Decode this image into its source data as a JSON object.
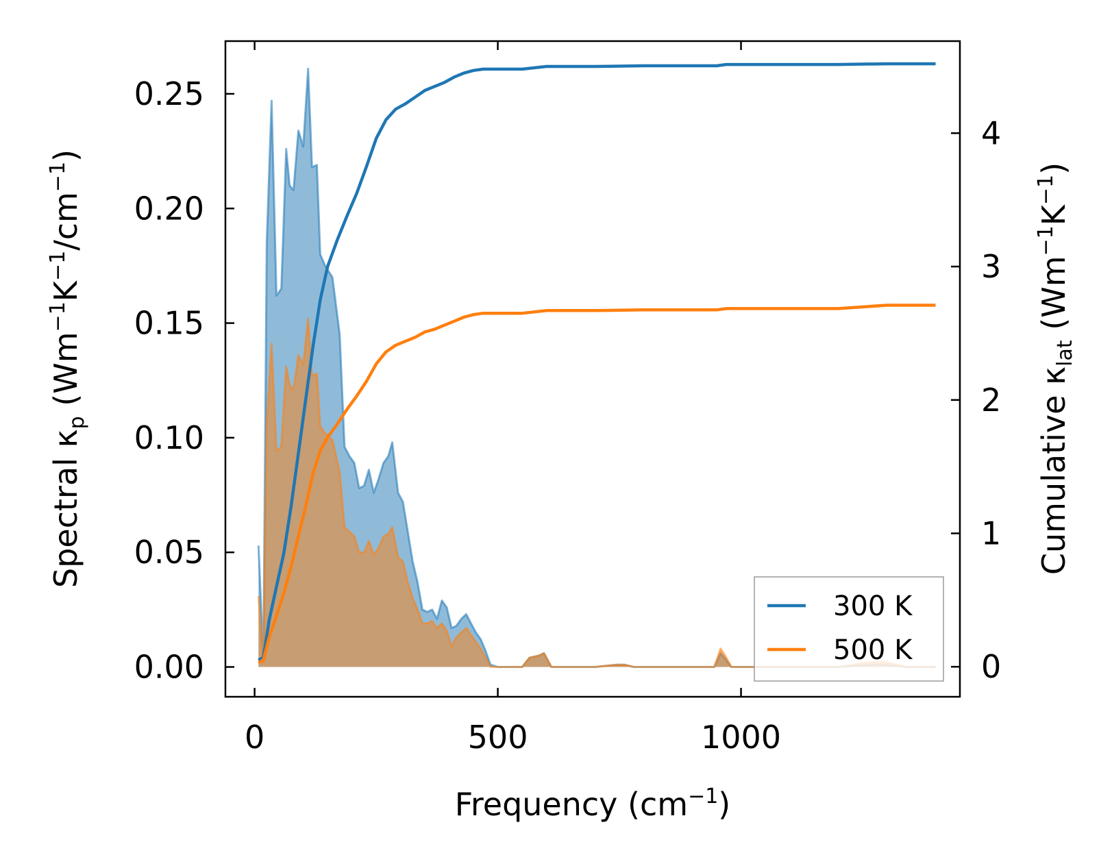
{
  "chart_data": {
    "type": "area+line",
    "xlabel": "Frequency (cm",
    "xlabel_sup": "−1",
    "xlabel_end": ")",
    "ylabel_left": {
      "prefix": "Spectral κ",
      "sub": "p",
      "mid": " (Wm",
      "sup1": "−1",
      "k": "K",
      "sup2": "−1",
      "slash": "/cm",
      "sup3": "−1",
      "end": ")"
    },
    "ylabel_right": {
      "prefix": "Cumulative κ",
      "sub": "lat",
      "mid": " (Wm",
      "sup1": "−1",
      "k": "K",
      "sup2": "−1",
      "end": ")"
    },
    "xlim": [
      -60,
      1450
    ],
    "ylim_left": [
      -0.013,
      0.273
    ],
    "ylim_right": [
      -0.225,
      4.69
    ],
    "x_ticks": [
      0,
      500,
      1000
    ],
    "x_tick_labels": [
      "0",
      "500",
      "1000"
    ],
    "y_left_ticks": [
      0.0,
      0.05,
      0.1,
      0.15,
      0.2,
      0.25
    ],
    "y_left_tick_labels": [
      "0.00",
      "0.05",
      "0.10",
      "0.15",
      "0.20",
      "0.25"
    ],
    "y_right_ticks": [
      0,
      1,
      2,
      3,
      4
    ],
    "y_right_tick_labels": [
      "0",
      "1",
      "2",
      "3",
      "4"
    ],
    "legend": {
      "position": "lower-right",
      "entries": [
        "300 K",
        "500 K"
      ]
    },
    "series": [
      {
        "name": "300 K",
        "color": "#1f77b4",
        "spectral": [
          [
            8,
            0.053
          ],
          [
            18,
            0.003
          ],
          [
            25,
            0.185
          ],
          [
            35,
            0.247
          ],
          [
            45,
            0.162
          ],
          [
            55,
            0.165
          ],
          [
            65,
            0.226
          ],
          [
            72,
            0.21
          ],
          [
            80,
            0.208
          ],
          [
            90,
            0.234
          ],
          [
            100,
            0.227
          ],
          [
            110,
            0.261
          ],
          [
            118,
            0.218
          ],
          [
            128,
            0.219
          ],
          [
            135,
            0.18
          ],
          [
            145,
            0.175
          ],
          [
            160,
            0.17
          ],
          [
            175,
            0.145
          ],
          [
            185,
            0.096
          ],
          [
            195,
            0.092
          ],
          [
            205,
            0.089
          ],
          [
            215,
            0.078
          ],
          [
            225,
            0.079
          ],
          [
            235,
            0.086
          ],
          [
            245,
            0.076
          ],
          [
            255,
            0.082
          ],
          [
            265,
            0.089
          ],
          [
            275,
            0.092
          ],
          [
            283,
            0.098
          ],
          [
            295,
            0.076
          ],
          [
            305,
            0.072
          ],
          [
            315,
            0.059
          ],
          [
            325,
            0.046
          ],
          [
            335,
            0.037
          ],
          [
            345,
            0.025
          ],
          [
            355,
            0.024
          ],
          [
            365,
            0.025
          ],
          [
            375,
            0.021
          ],
          [
            385,
            0.029
          ],
          [
            395,
            0.026
          ],
          [
            405,
            0.017
          ],
          [
            415,
            0.018
          ],
          [
            425,
            0.021
          ],
          [
            435,
            0.023
          ],
          [
            445,
            0.019
          ],
          [
            455,
            0.015
          ],
          [
            465,
            0.012
          ],
          [
            475,
            0.007
          ],
          [
            485,
            0.001
          ],
          [
            500,
            0.0
          ],
          [
            550,
            0.0
          ],
          [
            565,
            0.004
          ],
          [
            585,
            0.005
          ],
          [
            595,
            0.006
          ],
          [
            610,
            0.0
          ],
          [
            700,
            0.0
          ],
          [
            745,
            0.001
          ],
          [
            760,
            0.001
          ],
          [
            780,
            0.0
          ],
          [
            900,
            0.0
          ],
          [
            945,
            0.0
          ],
          [
            958,
            0.006
          ],
          [
            970,
            0.003
          ],
          [
            980,
            0.0
          ],
          [
            1200,
            0.0
          ],
          [
            1260,
            0.001
          ],
          [
            1300,
            0.001
          ],
          [
            1340,
            0.0
          ],
          [
            1400,
            0.0
          ]
        ],
        "cumulative": [
          [
            8,
            0.05
          ],
          [
            18,
            0.07
          ],
          [
            30,
            0.35
          ],
          [
            45,
            0.6
          ],
          [
            60,
            0.85
          ],
          [
            75,
            1.2
          ],
          [
            90,
            1.6
          ],
          [
            105,
            2.0
          ],
          [
            120,
            2.4
          ],
          [
            135,
            2.75
          ],
          [
            150,
            3.0
          ],
          [
            170,
            3.2
          ],
          [
            190,
            3.38
          ],
          [
            210,
            3.55
          ],
          [
            230,
            3.75
          ],
          [
            250,
            3.96
          ],
          [
            270,
            4.1
          ],
          [
            290,
            4.18
          ],
          [
            310,
            4.22
          ],
          [
            330,
            4.27
          ],
          [
            350,
            4.32
          ],
          [
            370,
            4.35
          ],
          [
            390,
            4.38
          ],
          [
            410,
            4.42
          ],
          [
            430,
            4.45
          ],
          [
            450,
            4.47
          ],
          [
            470,
            4.48
          ],
          [
            500,
            4.48
          ],
          [
            550,
            4.48
          ],
          [
            600,
            4.5
          ],
          [
            700,
            4.5
          ],
          [
            800,
            4.505
          ],
          [
            900,
            4.505
          ],
          [
            950,
            4.505
          ],
          [
            970,
            4.515
          ],
          [
            1100,
            4.515
          ],
          [
            1200,
            4.515
          ],
          [
            1300,
            4.52
          ],
          [
            1400,
            4.52
          ]
        ]
      },
      {
        "name": "500 K",
        "color": "#ff7f0e",
        "spectral": [
          [
            8,
            0.031
          ],
          [
            18,
            0.002
          ],
          [
            25,
            0.107
          ],
          [
            35,
            0.141
          ],
          [
            45,
            0.094
          ],
          [
            55,
            0.096
          ],
          [
            65,
            0.131
          ],
          [
            72,
            0.123
          ],
          [
            80,
            0.121
          ],
          [
            90,
            0.136
          ],
          [
            100,
            0.132
          ],
          [
            110,
            0.152
          ],
          [
            118,
            0.127
          ],
          [
            128,
            0.128
          ],
          [
            135,
            0.105
          ],
          [
            145,
            0.102
          ],
          [
            160,
            0.099
          ],
          [
            175,
            0.085
          ],
          [
            185,
            0.061
          ],
          [
            195,
            0.059
          ],
          [
            205,
            0.057
          ],
          [
            215,
            0.05
          ],
          [
            225,
            0.05
          ],
          [
            235,
            0.055
          ],
          [
            245,
            0.049
          ],
          [
            255,
            0.052
          ],
          [
            265,
            0.057
          ],
          [
            275,
            0.058
          ],
          [
            283,
            0.061
          ],
          [
            295,
            0.048
          ],
          [
            305,
            0.046
          ],
          [
            315,
            0.037
          ],
          [
            325,
            0.03
          ],
          [
            335,
            0.025
          ],
          [
            345,
            0.019
          ],
          [
            355,
            0.019
          ],
          [
            365,
            0.02
          ],
          [
            375,
            0.017
          ],
          [
            385,
            0.019
          ],
          [
            395,
            0.016
          ],
          [
            405,
            0.009
          ],
          [
            415,
            0.013
          ],
          [
            425,
            0.015
          ],
          [
            435,
            0.017
          ],
          [
            445,
            0.014
          ],
          [
            455,
            0.011
          ],
          [
            465,
            0.008
          ],
          [
            475,
            0.004
          ],
          [
            485,
            0.0
          ],
          [
            500,
            0.0
          ],
          [
            550,
            0.0
          ],
          [
            565,
            0.004
          ],
          [
            585,
            0.005
          ],
          [
            595,
            0.006
          ],
          [
            610,
            0.0
          ],
          [
            700,
            0.0
          ],
          [
            745,
            0.001
          ],
          [
            760,
            0.001
          ],
          [
            780,
            0.0
          ],
          [
            900,
            0.0
          ],
          [
            945,
            0.0
          ],
          [
            958,
            0.008
          ],
          [
            970,
            0.004
          ],
          [
            980,
            0.0
          ],
          [
            1200,
            0.0
          ],
          [
            1260,
            0.002
          ],
          [
            1300,
            0.002
          ],
          [
            1340,
            0.0
          ],
          [
            1400,
            0.0
          ]
        ],
        "cumulative": [
          [
            8,
            0.03
          ],
          [
            18,
            0.05
          ],
          [
            30,
            0.22
          ],
          [
            45,
            0.38
          ],
          [
            60,
            0.55
          ],
          [
            75,
            0.75
          ],
          [
            90,
            0.98
          ],
          [
            105,
            1.2
          ],
          [
            120,
            1.45
          ],
          [
            135,
            1.62
          ],
          [
            150,
            1.72
          ],
          [
            170,
            1.82
          ],
          [
            190,
            1.93
          ],
          [
            210,
            2.03
          ],
          [
            230,
            2.14
          ],
          [
            250,
            2.27
          ],
          [
            270,
            2.36
          ],
          [
            290,
            2.41
          ],
          [
            310,
            2.44
          ],
          [
            330,
            2.47
          ],
          [
            350,
            2.51
          ],
          [
            370,
            2.53
          ],
          [
            390,
            2.56
          ],
          [
            410,
            2.59
          ],
          [
            430,
            2.62
          ],
          [
            450,
            2.64
          ],
          [
            470,
            2.65
          ],
          [
            500,
            2.65
          ],
          [
            550,
            2.65
          ],
          [
            600,
            2.67
          ],
          [
            700,
            2.67
          ],
          [
            800,
            2.675
          ],
          [
            900,
            2.675
          ],
          [
            950,
            2.675
          ],
          [
            970,
            2.685
          ],
          [
            1100,
            2.685
          ],
          [
            1200,
            2.685
          ],
          [
            1300,
            2.71
          ],
          [
            1400,
            2.71
          ]
        ]
      }
    ]
  }
}
